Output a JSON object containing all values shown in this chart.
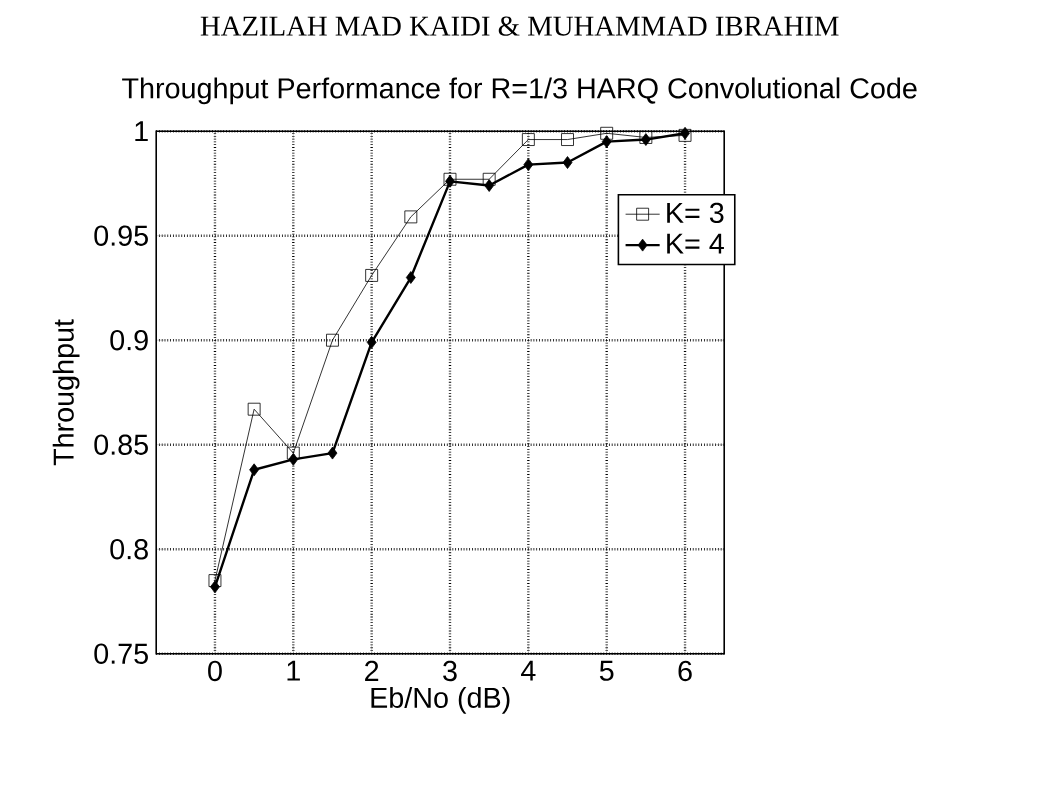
{
  "chart_data": {
    "type": "line",
    "title": "Throughput Performance for R=1/3 HARQ Convolutional Code",
    "annotations": [
      "HAZILAH MAD KAIDI & MUHAMMAD IBRAHIM"
    ],
    "xlabel": "Eb/No (dB)",
    "ylabel": "Throughput",
    "x": [
      0,
      0.5,
      1,
      1.5,
      2,
      2.5,
      3,
      3.5,
      4,
      4.5,
      5,
      5.5,
      6
    ],
    "series": [
      {
        "name": "K= 3",
        "color": "#000000",
        "marker": "square",
        "values": [
          0.785,
          0.867,
          0.846,
          0.9,
          0.931,
          0.959,
          0.977,
          0.977,
          0.996,
          0.996,
          0.999,
          0.997,
          0.998
        ]
      },
      {
        "name": "K= 4",
        "color": "#000000",
        "marker": "diamond",
        "values": [
          0.782,
          0.838,
          0.843,
          0.846,
          0.899,
          0.93,
          0.976,
          0.974,
          0.984,
          0.985,
          0.995,
          0.996,
          0.999
        ]
      }
    ],
    "xlim": [
      -0.75,
      6.5
    ],
    "ylim": [
      0.75,
      1
    ],
    "xticks": [
      0,
      1,
      2,
      3,
      4,
      5,
      6
    ],
    "yticks": [
      0.75,
      0.8,
      0.85,
      0.9,
      0.95,
      1
    ],
    "grid": true,
    "legend": "top right"
  }
}
